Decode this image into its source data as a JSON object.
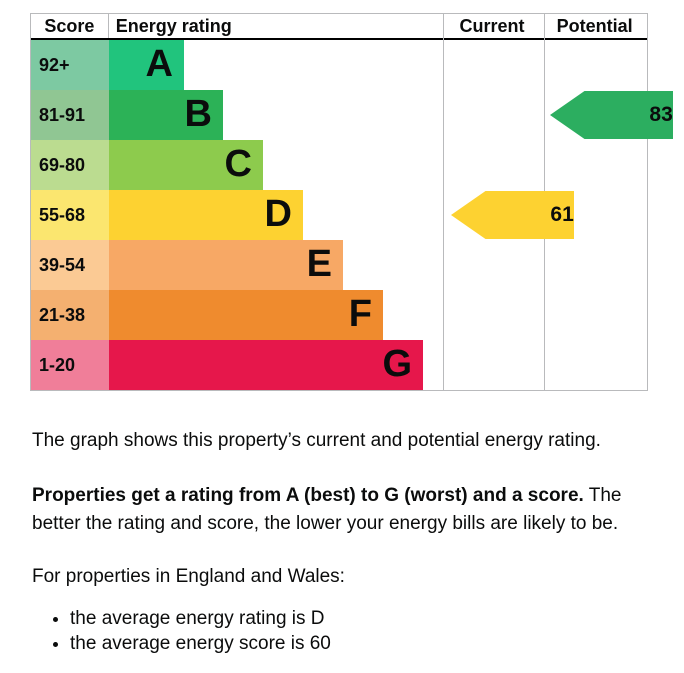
{
  "chart": {
    "headers": {
      "score": "Score",
      "rating": "Energy rating",
      "current": "Current",
      "potential": "Potential"
    }
  },
  "chart_data": {
    "type": "bar",
    "subtype": "epc-energy-rating",
    "title": "Energy rating",
    "bands": [
      {
        "letter": "A",
        "score_range": "92+",
        "color": "#21c47d",
        "tint": "#7dc9a2"
      },
      {
        "letter": "B",
        "score_range": "81-91",
        "color": "#2cb257",
        "tint": "#90c693"
      },
      {
        "letter": "C",
        "score_range": "69-80",
        "color": "#8dcb4d",
        "tint": "#bbdc90"
      },
      {
        "letter": "D",
        "score_range": "55-68",
        "color": "#fdd231",
        "tint": "#fbe66f"
      },
      {
        "letter": "E",
        "score_range": "39-54",
        "color": "#f7a865",
        "tint": "#fbca94"
      },
      {
        "letter": "F",
        "score_range": "21-38",
        "color": "#ef8b2e",
        "tint": "#f4b070"
      },
      {
        "letter": "G",
        "score_range": "1-20",
        "color": "#e6174b",
        "tint": "#f07e99"
      }
    ],
    "current": {
      "score": "61",
      "letter": "D",
      "color": "#fdd231"
    },
    "potential": {
      "score": "83",
      "letter": "B",
      "color": "#2cae60"
    }
  },
  "description": {
    "para1": "The graph shows this property’s current and potential energy rating.",
    "para2_bold": "Properties get a rating from A (best) to G (worst) and a score.",
    "para2_rest": " The better the rating and score, the lower your energy bills are likely to be.",
    "para3": "For properties in England and Wales:",
    "bullets": [
      "the average energy rating is D",
      "the average energy score is 60"
    ]
  }
}
